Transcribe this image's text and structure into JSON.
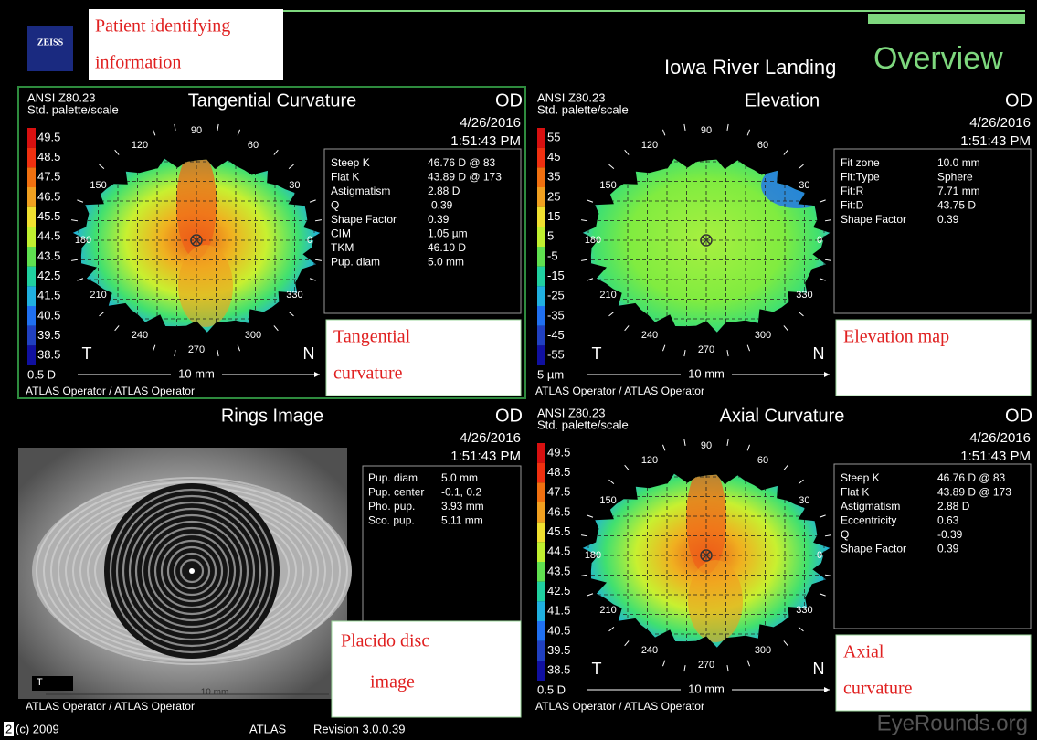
{
  "header": {
    "logo": "ZEISS",
    "annotation": [
      "Patient identifying",
      "information"
    ],
    "site": "Iowa River Landing",
    "title": "Overview"
  },
  "panels": [
    {
      "standard": "ANSI Z80.23",
      "palette": "Std. palette/scale",
      "title": "Tangential Curvature",
      "eye": "OD",
      "date": "4/26/2016",
      "time": "1:51:43 PM",
      "scale": [
        "49.5",
        "48.5",
        "47.5",
        "46.5",
        "45.5",
        "44.5",
        "43.5",
        "42.5",
        "41.5",
        "40.5",
        "39.5",
        "38.5"
      ],
      "scale_unit": "0.5 D",
      "angles": [
        "90",
        "120",
        "60",
        "150",
        "30",
        "180",
        "0",
        "210",
        "330",
        "240",
        "300",
        "270"
      ],
      "temporal": "T",
      "nasal": "N",
      "distance": "10 mm",
      "operator": "ATLAS Operator / ATLAS Operator",
      "info": [
        {
          "label": "Steep K",
          "value": "46.76 D @ 83"
        },
        {
          "label": "Flat K",
          "value": "43.89 D @ 173"
        },
        {
          "label": "Astigmatism",
          "value": "2.88 D"
        },
        {
          "label": "Q",
          "value": "-0.39"
        },
        {
          "label": "Shape Factor",
          "value": "0.39"
        },
        {
          "label": "CIM",
          "value": "1.05 µm"
        },
        {
          "label": "TKM",
          "value": "46.10 D"
        },
        {
          "label": "Pup. diam",
          "value": "5.0 mm"
        }
      ],
      "annotation": [
        "Tangential",
        "curvature"
      ]
    },
    {
      "standard": "ANSI Z80.23",
      "palette": "Std. palette/scale",
      "title": "Elevation",
      "eye": "OD",
      "date": "4/26/2016",
      "time": "1:51:43 PM",
      "scale": [
        "55",
        "45",
        "35",
        "25",
        "15",
        "5",
        "-5",
        "-15",
        "-25",
        "-35",
        "-45",
        "-55"
      ],
      "scale_unit": "5 µm",
      "angles": [
        "90",
        "120",
        "60",
        "150",
        "30",
        "180",
        "0",
        "210",
        "330",
        "240",
        "300",
        "270"
      ],
      "temporal": "T",
      "nasal": "N",
      "distance": "10 mm",
      "operator": "ATLAS Operator / ATLAS Operator",
      "info": [
        {
          "label": "Fit zone",
          "value": "10.0 mm"
        },
        {
          "label": "Fit:Type",
          "value": "Sphere"
        },
        {
          "label": "Fit:R",
          "value": "7.71 mm"
        },
        {
          "label": "Fit:D",
          "value": "43.75 D"
        },
        {
          "label": "Shape Factor",
          "value": "0.39"
        }
      ],
      "annotation": [
        "Elevation map"
      ]
    },
    {
      "title": "Rings Image",
      "eye": "OD",
      "date": "4/26/2016",
      "time": "1:51:43 PM",
      "temporal": "T",
      "distance": "10 mm",
      "operator": "ATLAS Operator / ATLAS Operator",
      "info": [
        {
          "label": "Pup. diam",
          "value": "5.0 mm"
        },
        {
          "label": "Pup. center",
          "value": "-0.1, 0.2"
        },
        {
          "label": "Pho. pup.",
          "value": "3.93 mm"
        },
        {
          "label": "Sco. pup.",
          "value": "5.11 mm"
        }
      ],
      "annotation": [
        "Placido disc",
        "image"
      ]
    },
    {
      "standard": "ANSI Z80.23",
      "palette": "Std. palette/scale",
      "title": "Axial Curvature",
      "eye": "OD",
      "date": "4/26/2016",
      "time": "1:51:43 PM",
      "scale": [
        "49.5",
        "48.5",
        "47.5",
        "46.5",
        "45.5",
        "44.5",
        "43.5",
        "42.5",
        "41.5",
        "40.5",
        "39.5",
        "38.5"
      ],
      "scale_unit": "0.5 D",
      "angles": [
        "90",
        "120",
        "60",
        "150",
        "30",
        "180",
        "0",
        "210",
        "330",
        "240",
        "300",
        "270"
      ],
      "temporal": "T",
      "nasal": "N",
      "distance": "10 mm",
      "operator": "ATLAS Operator / ATLAS Operator",
      "info": [
        {
          "label": "Steep K",
          "value": "46.76 D @ 83"
        },
        {
          "label": "Flat K",
          "value": "43.89 D @ 173"
        },
        {
          "label": "Astigmatism",
          "value": "2.88 D"
        },
        {
          "label": "Eccentricity",
          "value": "0.63"
        },
        {
          "label": "Q",
          "value": "-0.39"
        },
        {
          "label": "Shape Factor",
          "value": "0.39"
        }
      ],
      "annotation": [
        "Axial",
        "curvature"
      ]
    }
  ],
  "footer": {
    "page": "2",
    "copyright": "(c) 2009",
    "product": "ATLAS",
    "revision": "Revision 3.0.0.39",
    "watermark": "EyeRounds.org"
  }
}
